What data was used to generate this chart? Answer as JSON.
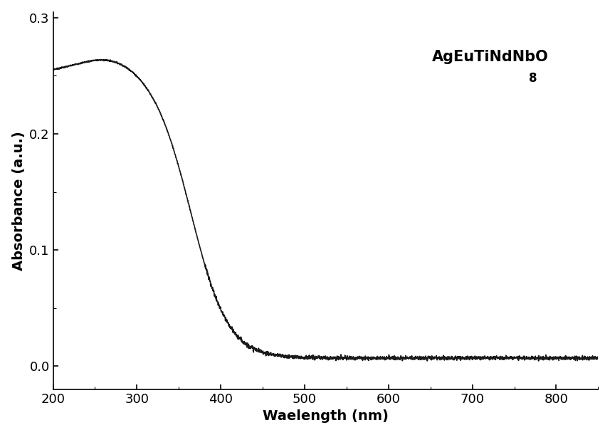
{
  "xlabel": "Waelength (nm)",
  "ylabel": "Absorbance (a.u.)",
  "xlim": [
    200,
    850
  ],
  "ylim": [
    -0.02,
    0.305
  ],
  "yticks": [
    0.0,
    0.1,
    0.2,
    0.3
  ],
  "xticks": [
    200,
    300,
    400,
    500,
    600,
    700,
    800
  ],
  "line_color": "#1a1a1a",
  "line_width": 1.2,
  "background_color": "#ffffff",
  "label_fontsize": 14,
  "tick_fontsize": 13,
  "annotation_fontsize": 15
}
